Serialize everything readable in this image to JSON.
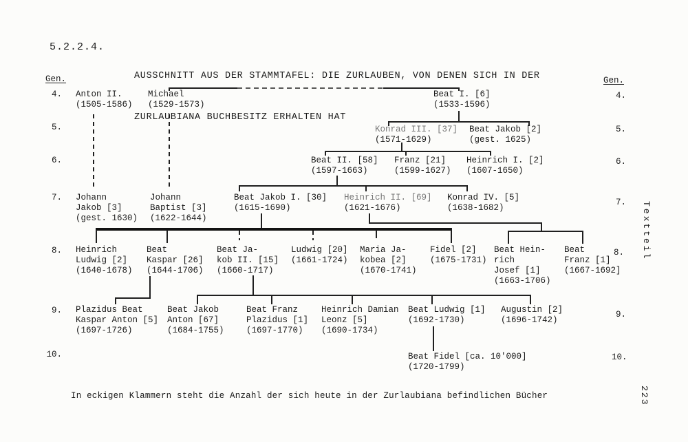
{
  "document": {
    "section_number": "5.2.2.4.",
    "title_lines": [
      "AUSSCHNITT AUS DER STAMMTAFEL: DIE ZURLAUBEN, VON DENEN SICH IN DER",
      "ZURLAUBIANA BUCHBESITZ ERHALTEN HAT"
    ],
    "generation_header_left": "Gen.",
    "generation_header_right": "Gen.",
    "footnote": "In eckigen Klammern steht die Anzahl der sich heute in der Zurlaubiana befindlichen Bücher",
    "margin_side_label": "Textteil",
    "page_number": "223",
    "ink_color": "#1a1a1a",
    "faded_ink_color": "#767676",
    "paper_color": "#fcfcfa"
  },
  "generation_rows": [
    {
      "label": "4."
    },
    {
      "label": "5."
    },
    {
      "label": "6."
    },
    {
      "label": "7."
    },
    {
      "label": "8."
    },
    {
      "label": "9."
    },
    {
      "label": "10."
    }
  ],
  "tree": {
    "bracket_note": "Zahl in eckigen Klammern = Anzahl Bücher in der Zurlaubiana",
    "persons": [
      {
        "id": "anton-ii",
        "generation": 4,
        "lines": [
          "Anton II.",
          "(1505-1586)"
        ]
      },
      {
        "id": "michael",
        "generation": 4,
        "lines": [
          "Michael",
          "(1529-1573)"
        ]
      },
      {
        "id": "beat-i",
        "generation": 4,
        "books": "6",
        "lines": [
          "Beat I. [6]",
          "(1533-1596)"
        ]
      },
      {
        "id": "konrad-iii",
        "generation": 5,
        "books": "37",
        "faded_line": 0,
        "lines": [
          "Konrad III. [37]",
          "(1571-1629)"
        ]
      },
      {
        "id": "beat-jakob",
        "generation": 5,
        "books": "2",
        "lines": [
          "Beat Jakob [2]",
          "(gest. 1625)"
        ]
      },
      {
        "id": "beat-ii",
        "generation": 6,
        "books": "58",
        "lines": [
          "Beat II. [58]",
          "(1597-1663)"
        ]
      },
      {
        "id": "franz",
        "generation": 6,
        "books": "21",
        "lines": [
          "Franz [21]",
          "(1599-1627)"
        ]
      },
      {
        "id": "heinrich-i",
        "generation": 6,
        "books": "2",
        "lines": [
          "Heinrich I. [2]",
          "(1607-1650)"
        ]
      },
      {
        "id": "johann-jakob",
        "generation": 7,
        "books": "3",
        "lines": [
          "Johann",
          "Jakob [3]",
          "(gest. 1630)"
        ]
      },
      {
        "id": "johann-baptist",
        "generation": 7,
        "books": "3",
        "lines": [
          "Johann",
          "Baptist [3]",
          "(1622-1644)"
        ]
      },
      {
        "id": "beat-jakob-i",
        "generation": 7,
        "books": "30",
        "lines": [
          "Beat Jakob I. [30]",
          "(1615-1690)"
        ]
      },
      {
        "id": "heinrich-ii",
        "generation": 7,
        "books": "69",
        "faded_line": 0,
        "lines": [
          "Heinrich II. [69]",
          "(1621-1676)"
        ]
      },
      {
        "id": "konrad-iv",
        "generation": 7,
        "books": "5",
        "lines": [
          "Konrad IV. [5]",
          "(1638-1682)"
        ]
      },
      {
        "id": "heinrich-ludwig",
        "generation": 8,
        "books": "2",
        "lines": [
          "Heinrich",
          "Ludwig [2]",
          "(1640-1678)"
        ]
      },
      {
        "id": "beat-kaspar",
        "generation": 8,
        "books": "26",
        "lines": [
          "Beat",
          "Kaspar [26]",
          "(1644-1706)"
        ]
      },
      {
        "id": "beat-jakob-ii",
        "generation": 8,
        "books": "15",
        "lines": [
          "Beat Ja-",
          "kob II. [15]",
          "(1660-1717)"
        ]
      },
      {
        "id": "ludwig",
        "generation": 8,
        "books": "20",
        "lines": [
          "Ludwig [20]",
          "(1661-1724)"
        ]
      },
      {
        "id": "maria-jakobea",
        "generation": 8,
        "books": "2",
        "lines": [
          "Maria Ja-",
          "kobea [2]",
          "(1670-1741)"
        ]
      },
      {
        "id": "fidel",
        "generation": 8,
        "books": "2",
        "lines": [
          "Fidel [2]",
          "(1675-1731)"
        ]
      },
      {
        "id": "beat-heinrich-josef",
        "generation": 8,
        "books": "1",
        "lines": [
          "Beat Hein-",
          "rich",
          "Josef [1]",
          "(1663-1706)"
        ]
      },
      {
        "id": "beat-franz",
        "generation": 8,
        "books": "1",
        "lines": [
          "Beat",
          "Franz [1]",
          "(1667-1692]"
        ]
      },
      {
        "id": "plazidus-beat-kaspar-anton",
        "generation": 9,
        "books": "5",
        "lines": [
          "Plazidus Beat",
          "Kaspar Anton [5]",
          "(1697-1726)"
        ]
      },
      {
        "id": "beat-jakob-anton",
        "generation": 9,
        "books": "67",
        "lines": [
          "Beat Jakob",
          "Anton [67]",
          "(1684-1755)"
        ]
      },
      {
        "id": "beat-franz-plazidus",
        "generation": 9,
        "books": "1",
        "lines": [
          "Beat Franz",
          "Plazidus [1]",
          "(1697-1770)"
        ]
      },
      {
        "id": "heinrich-damian-leonz",
        "generation": 9,
        "books": "5",
        "lines": [
          "Heinrich Damian",
          "Leonz [5]",
          "(1690-1734)"
        ]
      },
      {
        "id": "beat-ludwig",
        "generation": 9,
        "books": "1",
        "lines": [
          "Beat Ludwig [1]",
          "(1692-1730)"
        ]
      },
      {
        "id": "augustin",
        "generation": 9,
        "books": "2",
        "lines": [
          "Augustin [2]",
          "(1696-1742)"
        ]
      },
      {
        "id": "beat-fidel",
        "generation": 10,
        "books": "ca. 10'000",
        "lines": [
          "Beat Fidel [ca. 10'000]",
          "(1720-1799)"
        ]
      }
    ]
  }
}
